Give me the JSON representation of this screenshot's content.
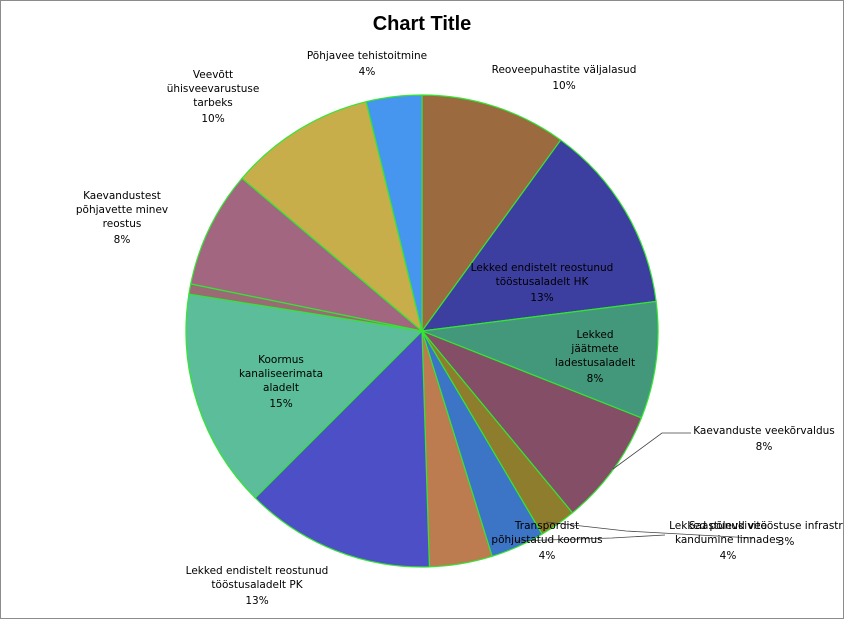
{
  "chart_data": {
    "type": "pie",
    "title": "Chart Title",
    "slices": [
      {
        "label": "Reoveepuhastite väljalasud",
        "pct": "10%",
        "value": 10,
        "color": "#9b6a3f"
      },
      {
        "label": "Lekked endistelt reostunud tööstusaladelt HK",
        "pct": "13%",
        "value": 13,
        "color": "#3c3ea0"
      },
      {
        "label": "Lekked jäätmete ladestusaladelt",
        "pct": "8%",
        "value": 8,
        "color": "#43977a"
      },
      {
        "label": "Kaevanduste veekõrvaldus",
        "pct": "8%",
        "value": 8,
        "color": "#834e66"
      },
      {
        "label": "Lekked põlevkivitööstuse infrastruktuuridest",
        "pct": "3%",
        "value": 2.5,
        "color": "#8e7d2c"
      },
      {
        "label": "Saastunud vee kandumine linnades",
        "pct": "4%",
        "value": 3.7,
        "color": "#3c74c6"
      },
      {
        "label": "Transpordist põhjustatud koormus",
        "pct": "4%",
        "value": 4.3,
        "color": "#bd7b50"
      },
      {
        "label": "Lekked endistelt reostunud tööstusaladelt PK",
        "pct": "13%",
        "value": 13,
        "color": "#4c4fc6"
      },
      {
        "label": "Koormus kanaliseerimata aladelt",
        "pct": "15%",
        "value": 15,
        "color": "#5bbd9a"
      },
      {
        "label": "",
        "pct": "",
        "value": 0.7,
        "color": "#9a6b74"
      },
      {
        "label": "Kaevandustest põhjavette minev reostus",
        "pct": "8%",
        "value": 8,
        "color": "#a26681"
      },
      {
        "label": "Veevõtt ühisveevarustuse tarbeks",
        "pct": "10%",
        "value": 10,
        "color": "#c8ae4a"
      },
      {
        "label": "Põhjavee tehistoitmine",
        "pct": "4%",
        "value": 3.8,
        "color": "#4696f0"
      }
    ],
    "legend": "none"
  }
}
